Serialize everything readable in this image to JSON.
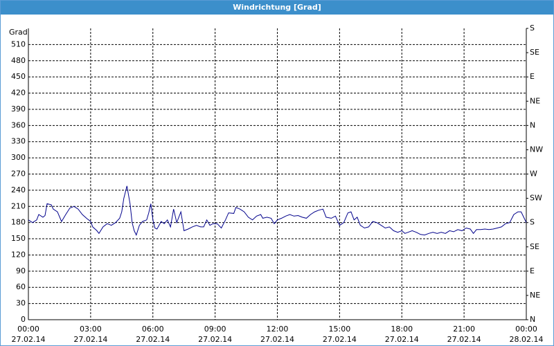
{
  "chart_data": {
    "type": "line",
    "title": "Windrichtung [Grad]",
    "y_label": "Grad",
    "xlim": [
      0,
      24
    ],
    "xticks": [
      {
        "value": 0,
        "label": [
          "00:00",
          "27.02.14"
        ]
      },
      {
        "value": 3,
        "label": [
          "03:00",
          "27.02.14"
        ]
      },
      {
        "value": 6,
        "label": [
          "06:00",
          "27.02.14"
        ]
      },
      {
        "value": 9,
        "label": [
          "09:00",
          "27.02.14"
        ]
      },
      {
        "value": 12,
        "label": [
          "12:00",
          "27.02.14"
        ]
      },
      {
        "value": 15,
        "label": [
          "15:00",
          "27.02.14"
        ]
      },
      {
        "value": 18,
        "label": [
          "18:00",
          "27.02.14"
        ]
      },
      {
        "value": 21,
        "label": [
          "21:00",
          "27.02.14"
        ]
      },
      {
        "value": 24,
        "label": [
          "00:00",
          "28.02.14"
        ]
      }
    ],
    "ylim": [
      0,
      540
    ],
    "yticks": [
      0,
      30,
      60,
      90,
      120,
      150,
      180,
      210,
      240,
      270,
      300,
      330,
      360,
      390,
      420,
      450,
      480,
      510
    ],
    "y2lim": [
      0,
      540
    ],
    "y2ticks": [
      {
        "value": 0,
        "label": "N"
      },
      {
        "value": 45,
        "label": "NE"
      },
      {
        "value": 90,
        "label": "E"
      },
      {
        "value": 135,
        "label": "SE"
      },
      {
        "value": 180,
        "label": "S"
      },
      {
        "value": 225,
        "label": "SW"
      },
      {
        "value": 270,
        "label": "W"
      },
      {
        "value": 315,
        "label": "NW"
      },
      {
        "value": 360,
        "label": "N"
      },
      {
        "value": 405,
        "label": "NE"
      },
      {
        "value": 450,
        "label": "E"
      },
      {
        "value": 495,
        "label": "SE"
      },
      {
        "value": 540,
        "label": "S"
      }
    ],
    "grid": true,
    "series": [
      {
        "name": "Windrichtung",
        "color": "#00008b",
        "x": [
          0,
          0.2,
          0.4,
          0.5,
          0.7,
          0.8,
          0.9,
          1.1,
          1.2,
          1.4,
          1.6,
          1.8,
          2.0,
          2.2,
          2.4,
          2.6,
          2.8,
          3.0,
          3.1,
          3.3,
          3.4,
          3.6,
          3.8,
          4.0,
          4.2,
          4.4,
          4.5,
          4.6,
          4.75,
          4.9,
          5.0,
          5.1,
          5.2,
          5.35,
          5.5,
          5.7,
          5.8,
          5.9,
          6.0,
          6.1,
          6.2,
          6.4,
          6.55,
          6.7,
          6.85,
          7.0,
          7.15,
          7.35,
          7.5,
          7.7,
          7.9,
          8.1,
          8.3,
          8.45,
          8.6,
          8.75,
          8.9,
          9.1,
          9.3,
          9.5,
          9.65,
          9.9,
          10.0,
          10.2,
          10.4,
          10.6,
          10.8,
          11.0,
          11.2,
          11.3,
          11.5,
          11.7,
          11.85,
          12.0,
          12.2,
          12.4,
          12.6,
          12.8,
          13.0,
          13.2,
          13.4,
          13.6,
          13.8,
          14.0,
          14.2,
          14.35,
          14.6,
          14.8,
          15.0,
          15.2,
          15.4,
          15.55,
          15.7,
          15.85,
          16.0,
          16.2,
          16.4,
          16.6,
          16.8,
          17.0,
          17.2,
          17.4,
          17.6,
          17.8,
          18.0,
          18.15,
          18.3,
          18.5,
          18.7,
          18.9,
          19.1,
          19.3,
          19.5,
          19.7,
          19.9,
          20.1,
          20.3,
          20.5,
          20.7,
          20.9,
          21.1,
          21.3,
          21.45,
          21.6,
          21.8,
          22.0,
          22.2,
          22.4,
          22.6,
          22.8,
          23.0,
          23.2,
          23.4,
          23.6,
          23.75,
          23.9,
          24.0
        ],
        "values": [
          185,
          180,
          185,
          195,
          190,
          193,
          215,
          213,
          205,
          200,
          182,
          195,
          207,
          210,
          205,
          195,
          188,
          182,
          172,
          165,
          160,
          172,
          178,
          175,
          180,
          188,
          200,
          225,
          248,
          215,
          180,
          165,
          157,
          175,
          182,
          185,
          198,
          215,
          185,
          170,
          168,
          182,
          178,
          185,
          172,
          205,
          180,
          200,
          165,
          168,
          172,
          175,
          172,
          172,
          185,
          175,
          178,
          178,
          170,
          185,
          198,
          197,
          208,
          205,
          200,
          190,
          185,
          192,
          195,
          188,
          190,
          188,
          178,
          185,
          188,
          192,
          195,
          192,
          193,
          190,
          188,
          195,
          200,
          203,
          205,
          190,
          188,
          192,
          175,
          180,
          198,
          200,
          185,
          190,
          175,
          170,
          172,
          182,
          180,
          175,
          170,
          172,
          165,
          162,
          165,
          160,
          162,
          165,
          162,
          158,
          157,
          160,
          162,
          160,
          162,
          160,
          165,
          163,
          167,
          165,
          170,
          168,
          160,
          167,
          167,
          168,
          167,
          168,
          170,
          172,
          178,
          180,
          195,
          200,
          200,
          188,
          180
        ]
      }
    ]
  }
}
